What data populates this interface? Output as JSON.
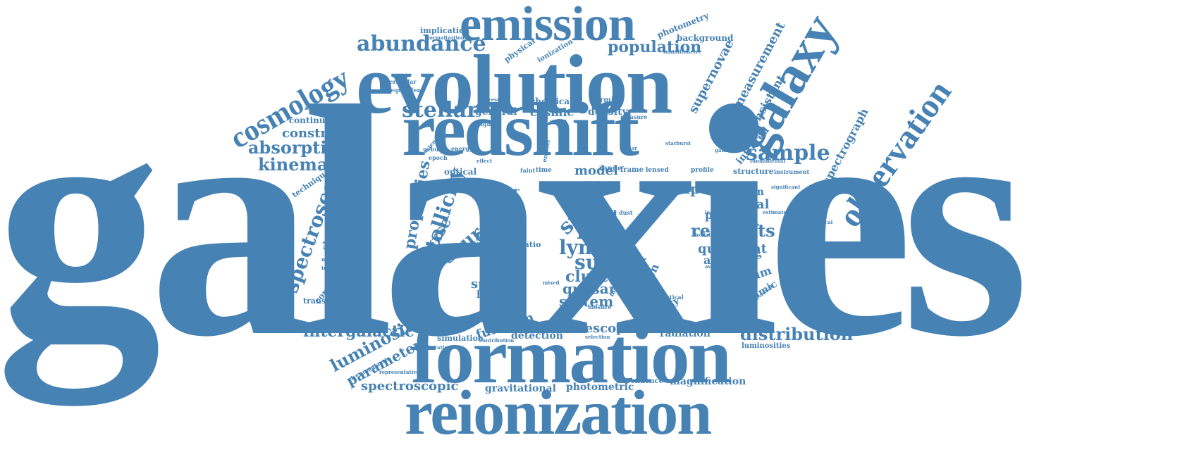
{
  "color": "#4682b4",
  "words": [
    {
      "text": "galaxies"
    },
    {
      "text": "formation"
    },
    {
      "text": "reionization"
    },
    {
      "text": "evolution"
    },
    {
      "text": "redshift"
    },
    {
      "text": "emission"
    },
    {
      "text": "galaxy"
    },
    {
      "text": "observation"
    },
    {
      "text": "cosmology"
    },
    {
      "text": "abundance"
    },
    {
      "text": "population"
    },
    {
      "text": "stellar"
    },
    {
      "text": "sample"
    },
    {
      "text": "spectroscopy"
    },
    {
      "text": "metallicity"
    },
    {
      "text": "distribution"
    },
    {
      "text": "luminosity"
    },
    {
      "text": "intergalactic"
    },
    {
      "text": "absorption"
    },
    {
      "text": "kinematic"
    },
    {
      "text": "constraint"
    },
    {
      "text": "properties"
    },
    {
      "text": "universe"
    },
    {
      "text": "source"
    },
    {
      "text": "star"
    },
    {
      "text": "line"
    },
    {
      "text": "lyman"
    },
    {
      "text": "survey"
    },
    {
      "text": "redshifts"
    },
    {
      "text": "quiescent"
    },
    {
      "text": "mas"
    },
    {
      "text": "model"
    },
    {
      "text": "dark"
    },
    {
      "text": "cluster"
    },
    {
      "text": "quasar"
    },
    {
      "text": "system"
    },
    {
      "text": "spectra"
    },
    {
      "text": "spectroscopic"
    },
    {
      "text": "parameter"
    },
    {
      "text": "supernovae"
    },
    {
      "text": "measurement"
    },
    {
      "text": "spectrograph"
    },
    {
      "text": "consistent"
    },
    {
      "text": "telescope"
    },
    {
      "text": "function"
    },
    {
      "text": "photometric"
    },
    {
      "text": "gravitational"
    },
    {
      "text": "magnification"
    },
    {
      "text": "escape"
    },
    {
      "text": "spectral"
    },
    {
      "text": "present"
    },
    {
      "text": "analysis"
    },
    {
      "text": "spectrum"
    },
    {
      "text": "dynamic"
    },
    {
      "text": "fraction"
    },
    {
      "text": "velocity"
    },
    {
      "text": "luminous"
    },
    {
      "text": "cosmic"
    },
    {
      "text": "chemical"
    },
    {
      "text": "density"
    },
    {
      "text": "general"
    },
    {
      "text": "forming"
    },
    {
      "text": "photometry"
    },
    {
      "text": "background"
    },
    {
      "text": "implication"
    },
    {
      "text": "physical"
    },
    {
      "text": "ionization"
    },
    {
      "text": "infrared"
    },
    {
      "text": "relation"
    },
    {
      "text": "observed"
    },
    {
      "text": "correlation"
    },
    {
      "text": "continuum"
    },
    {
      "text": "technique"
    },
    {
      "text": "transmission"
    },
    {
      "text": "submillimeter"
    },
    {
      "text": "detection"
    },
    {
      "text": "simulation"
    },
    {
      "text": "radiation"
    },
    {
      "text": "astronomy"
    },
    {
      "text": "luminosities"
    },
    {
      "text": "dependence"
    },
    {
      "text": "matter"
    },
    {
      "text": "strong"
    },
    {
      "text": "field"
    },
    {
      "text": "age"
    },
    {
      "text": "content"
    },
    {
      "text": "hubble"
    },
    {
      "text": "result"
    },
    {
      "text": "distance"
    },
    {
      "text": "resolution"
    },
    {
      "text": "optical"
    },
    {
      "text": "structure"
    },
    {
      "text": "frame"
    },
    {
      "text": "range"
    },
    {
      "text": "instrument"
    },
    {
      "text": "lensed"
    },
    {
      "text": "profile"
    },
    {
      "text": "almon"
    },
    {
      "text": "circumgalactic"
    },
    {
      "text": "representative"
    },
    {
      "text": "lenticular"
    },
    {
      "text": "interstellar"
    },
    {
      "text": "equivalent"
    },
    {
      "text": "normalization"
    },
    {
      "text": "submillimetre"
    },
    {
      "text": "astrophysics"
    },
    {
      "text": "nebular"
    },
    {
      "text": "epoch"
    },
    {
      "text": "energy"
    },
    {
      "text": "higher"
    },
    {
      "text": "extreme"
    },
    {
      "text": "science"
    },
    {
      "text": "measure"
    },
    {
      "text": "time"
    },
    {
      "text": "fundamental"
    },
    {
      "text": "cosmological"
    },
    {
      "text": "elliptical"
    },
    {
      "text": "massive"
    },
    {
      "text": "mosfire"
    },
    {
      "text": "selection"
    },
    {
      "text": "contribution"
    },
    {
      "text": "collaboration"
    },
    {
      "text": "metallicities"
    },
    {
      "text": "independent"
    },
    {
      "text": "leaker"
    },
    {
      "text": "estimate"
    },
    {
      "text": "significant"
    },
    {
      "text": "galactic"
    },
    {
      "text": "ratio"
    },
    {
      "text": "band"
    },
    {
      "text": "dust"
    },
    {
      "text": "break"
    },
    {
      "text": "method"
    },
    {
      "text": "mixed"
    },
    {
      "text": "individual"
    },
    {
      "text": "average"
    },
    {
      "text": "starburst"
    },
    {
      "text": "faint"
    },
    {
      "text": "emitter"
    },
    {
      "text": "color"
    },
    {
      "text": "effect"
    },
    {
      "text": "presence"
    },
    {
      "text": "young"
    },
    {
      "text": "ionizing"
    },
    {
      "text": "intense"
    },
    {
      "text": "transfer"
    }
  ]
}
